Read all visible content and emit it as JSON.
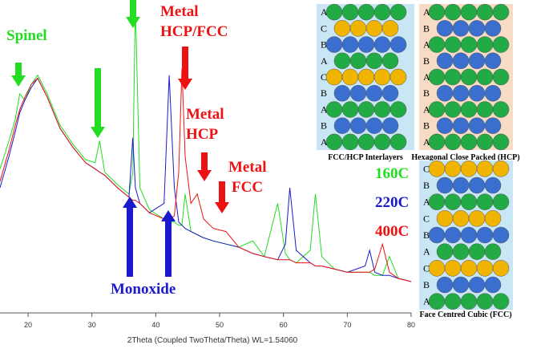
{
  "chart_data": {
    "type": "line",
    "x_label": "2Theta (Coupled TwoTheta/Theta) WL=1.54060",
    "x": [
      15.6,
      17,
      18,
      18.7,
      19.5,
      20.5,
      21.5,
      23,
      25,
      27,
      29,
      30.5,
      31.2,
      32,
      34,
      35.8,
      36.4,
      36.8,
      37.5,
      39,
      41.3,
      42.1,
      42.9,
      43.6,
      44.1,
      44.6,
      45.5,
      46.5,
      47.5,
      49,
      51,
      53,
      55.2,
      57,
      59.1,
      60.3,
      61,
      62,
      64.2,
      65,
      66,
      68,
      70,
      72.8,
      73.5,
      74.3,
      75.5,
      76.6,
      78,
      80
    ],
    "xlim": [
      15.6,
      80
    ],
    "xticks": [
      20,
      30,
      40,
      50,
      60,
      70,
      80
    ],
    "ylim": [
      0,
      100
    ],
    "series": [
      {
        "name": "160C",
        "color": "#22dd22",
        "values": [
          46,
          55,
          62,
          70,
          68,
          73,
          76,
          70,
          60,
          54,
          49,
          48,
          55,
          45,
          41,
          38,
          45,
          99,
          40,
          33,
          30,
          29,
          29,
          28,
          28,
          38,
          26,
          25,
          24,
          23,
          22,
          21,
          23,
          18,
          35,
          19,
          17,
          16,
          20,
          38,
          18,
          14,
          13,
          13,
          13,
          12,
          12,
          18,
          11,
          10
        ]
      },
      {
        "name": "220C",
        "color": "#1a1acc",
        "values": [
          40,
          50,
          58,
          64,
          68,
          72,
          75,
          69,
          59,
          53,
          48,
          46,
          45,
          44,
          40,
          37,
          56,
          40,
          35,
          32,
          35,
          76,
          40,
          29,
          28,
          27,
          26,
          25,
          24,
          23,
          22,
          21,
          19,
          18,
          17,
          22,
          40,
          20,
          16,
          15,
          15,
          14,
          13,
          15,
          20,
          13,
          12,
          12,
          11,
          10
        ]
      },
      {
        "name": "400C",
        "color": "#ee1111",
        "values": [
          42,
          52,
          60,
          65,
          69,
          73,
          75,
          69,
          59,
          53,
          48,
          46,
          45,
          44,
          40,
          37,
          36,
          36,
          35,
          32,
          30,
          30,
          31,
          45,
          78,
          50,
          35,
          38,
          30,
          27,
          26,
          21,
          19,
          18,
          17,
          17,
          17,
          16,
          16,
          15,
          15,
          14,
          13,
          13,
          13,
          14,
          22,
          13,
          11,
          10
        ]
      }
    ],
    "annotations": [
      {
        "lines": [
          "Spinel"
        ],
        "color": "#22dd22"
      },
      {
        "lines": [
          "Metal",
          "HCP/FCC"
        ],
        "color": "#ee1111"
      },
      {
        "lines": [
          "Metal",
          "HCP"
        ],
        "color": "#ee1111"
      },
      {
        "lines": [
          "Metal",
          "FCC"
        ],
        "color": "#ee1111"
      },
      {
        "lines": [
          "Monoxide"
        ],
        "color": "#1a1acc"
      }
    ],
    "diagrams": [
      {
        "caption": "FCC/HCP Interlayers",
        "layers": [
          "A",
          "C",
          "B",
          "A",
          "C",
          "B",
          "A",
          "B",
          "A"
        ]
      },
      {
        "caption": "Hexagonal Close Packed (HCP)",
        "layers": [
          "A",
          "B",
          "A",
          "B",
          "A",
          "B",
          "A",
          "B",
          "A"
        ]
      },
      {
        "caption": "Face Centred Cubic (FCC)",
        "layers": [
          "C",
          "B",
          "A",
          "C",
          "B",
          "A",
          "C",
          "B",
          "A"
        ]
      }
    ]
  }
}
